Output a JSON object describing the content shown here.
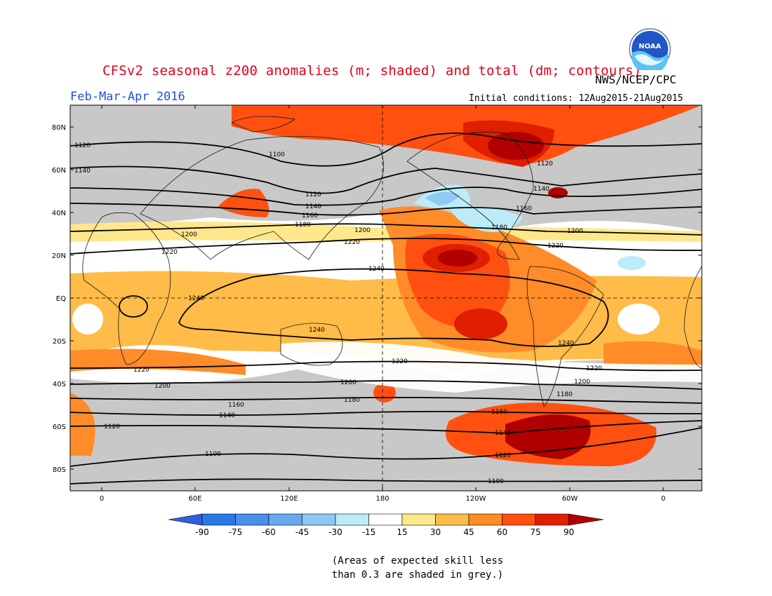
{
  "header": {
    "title": "CFSv2 seasonal z200 anomalies (m; shaded) and total (dm; contours)",
    "agency": "NWS/NCEP/CPC",
    "season": "Feb-Mar-Apr 2016",
    "initial_conditions": "Initial conditions: 12Aug2015-21Aug2015"
  },
  "logo": {
    "text": "NOAA",
    "icon": "noaa-logo-icon"
  },
  "map": {
    "lat_labels": [
      "80N",
      "60N",
      "40N",
      "20N",
      "EQ",
      "20S",
      "40S",
      "60S",
      "80S"
    ],
    "lon_labels": [
      "0",
      "60E",
      "120E",
      "180",
      "120W",
      "60W",
      "0"
    ],
    "contour_labels": [
      "1100",
      "1120",
      "1140",
      "1160",
      "1180",
      "1200",
      "1220",
      "1240"
    ]
  },
  "legend": {
    "labels": [
      "-90",
      "-75",
      "-60",
      "-45",
      "-30",
      "-15",
      "15",
      "30",
      "45",
      "60",
      "75",
      "90"
    ],
    "colors": [
      "#3060e0",
      "#2878e8",
      "#4890ec",
      "#68a8f0",
      "#90c8f4",
      "#bcecf8",
      "#ffffff",
      "#ffe88c",
      "#ffbc48",
      "#ff8c28",
      "#ff5010",
      "#e01e00",
      "#b00000"
    ]
  },
  "footnote": {
    "line1": "(Areas of expected skill less",
    "line2": "than 0.3 are shaded in grey.)"
  }
}
